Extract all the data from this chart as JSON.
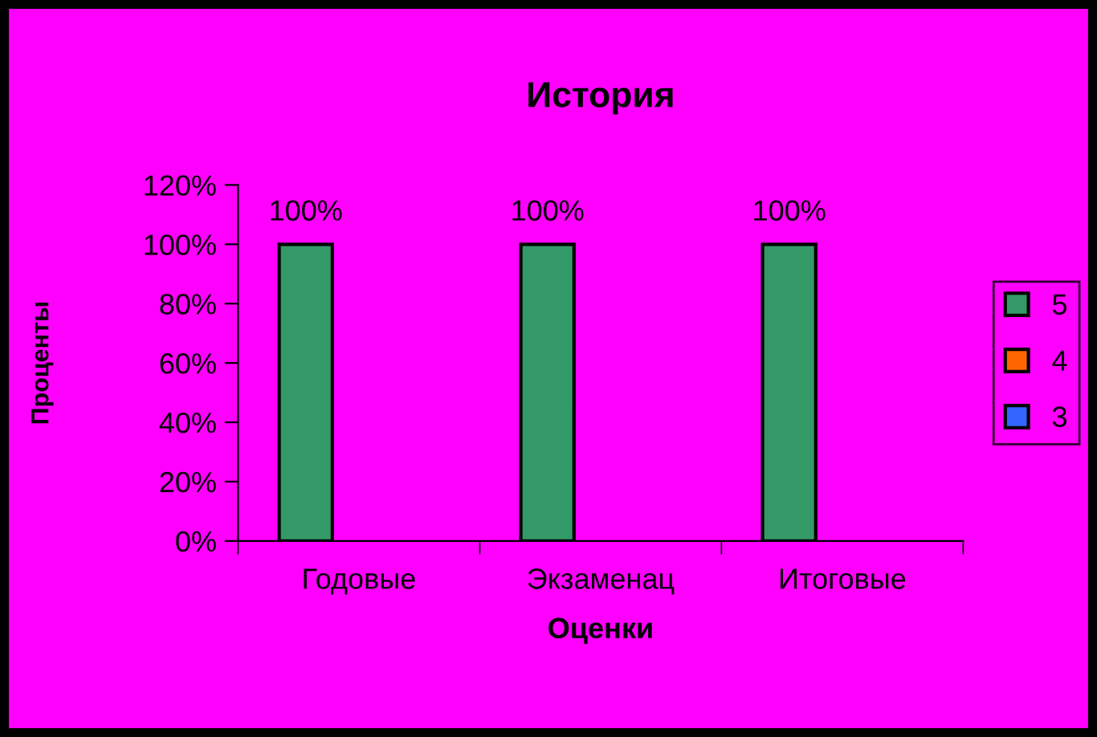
{
  "chart_data": {
    "type": "bar",
    "title": "История",
    "xlabel": "Оценки",
    "ylabel": "Проценты",
    "categories": [
      "Годовые",
      "Экзаменац",
      "Итоговые"
    ],
    "series": [
      {
        "name": "5",
        "color": "#339966",
        "values": [
          100,
          100,
          100
        ],
        "value_labels": [
          "100%",
          "100%",
          "100%"
        ]
      },
      {
        "name": "4",
        "color": "#ff6600",
        "values": [
          null,
          null,
          null
        ]
      },
      {
        "name": "3",
        "color": "#3366ff",
        "values": [
          null,
          null,
          null
        ]
      }
    ],
    "ylim": [
      0,
      120
    ],
    "yticks": [
      {
        "value": 0,
        "label": "0%"
      },
      {
        "value": 20,
        "label": "20%"
      },
      {
        "value": 40,
        "label": "40%"
      },
      {
        "value": 60,
        "label": "60%"
      },
      {
        "value": 80,
        "label": "80%"
      },
      {
        "value": 100,
        "label": "100%"
      },
      {
        "value": 120,
        "label": "120%"
      }
    ],
    "grid": false,
    "legend": "right"
  }
}
